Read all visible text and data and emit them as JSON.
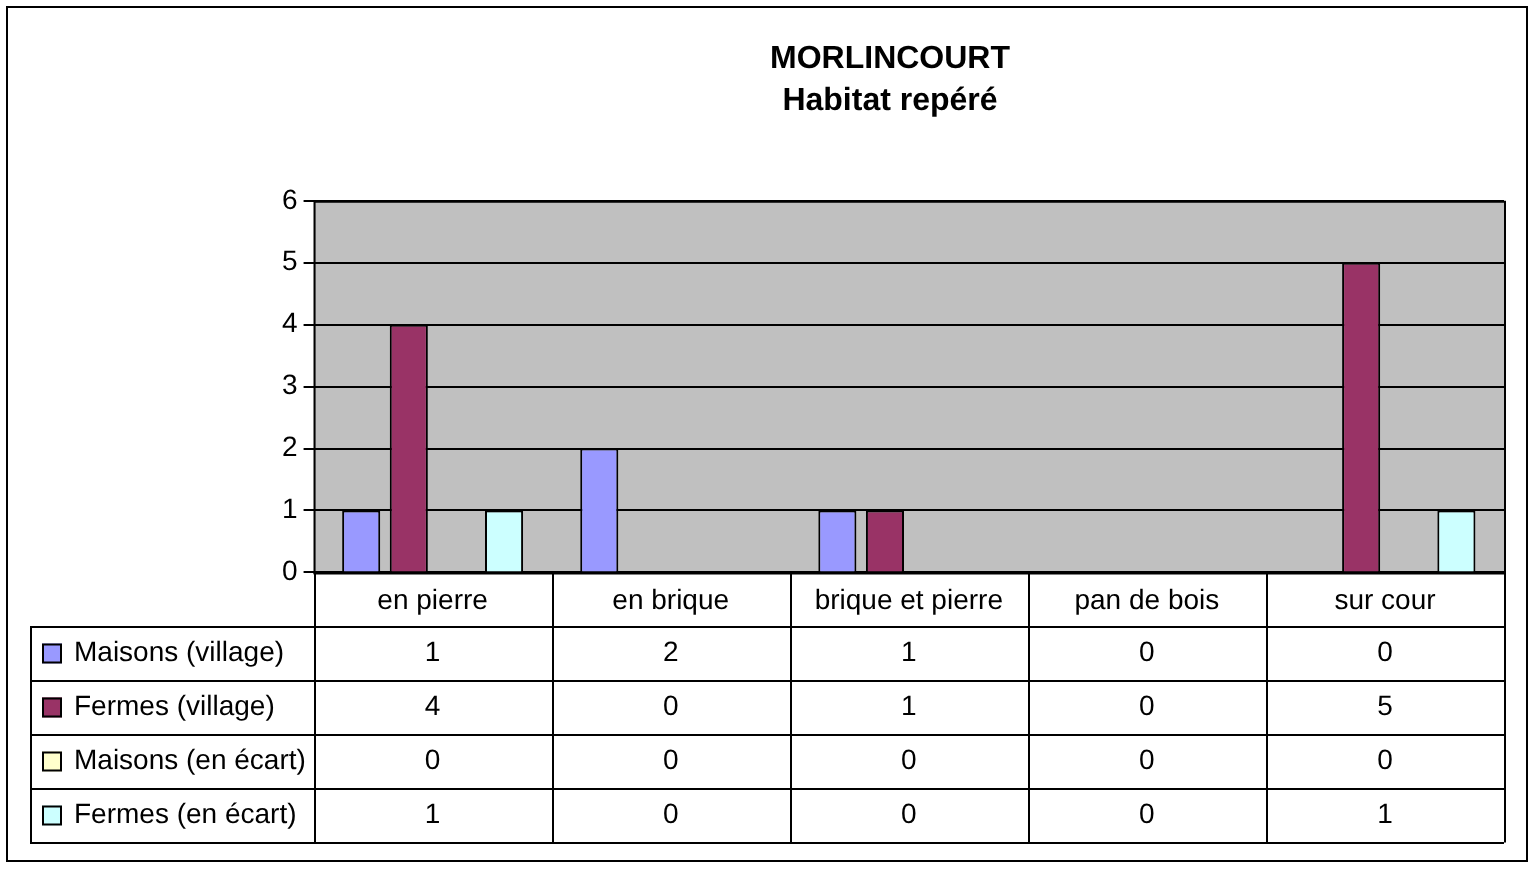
{
  "chart_data": {
    "type": "bar",
    "title": "MORLINCOURT",
    "subtitle": "Habitat repéré",
    "categories": [
      "en pierre",
      "en brique",
      "brique et pierre",
      "pan de bois",
      "sur cour"
    ],
    "series": [
      {
        "name": "Maisons (village)",
        "color": "#9999ff",
        "values": [
          1,
          2,
          1,
          0,
          0
        ]
      },
      {
        "name": "Fermes (village)",
        "color": "#993366",
        "values": [
          4,
          0,
          1,
          0,
          5
        ]
      },
      {
        "name": "Maisons (en écart)",
        "color": "#ffffcc",
        "values": [
          0,
          0,
          0,
          0,
          0
        ]
      },
      {
        "name": "Fermes (en écart)",
        "color": "#ccffff",
        "values": [
          1,
          0,
          0,
          0,
          1
        ]
      }
    ],
    "ylim": [
      0,
      6
    ],
    "yticks": [
      0,
      1,
      2,
      3,
      4,
      5,
      6
    ],
    "grid": "y",
    "legend": "bottom",
    "data_labels": true
  }
}
